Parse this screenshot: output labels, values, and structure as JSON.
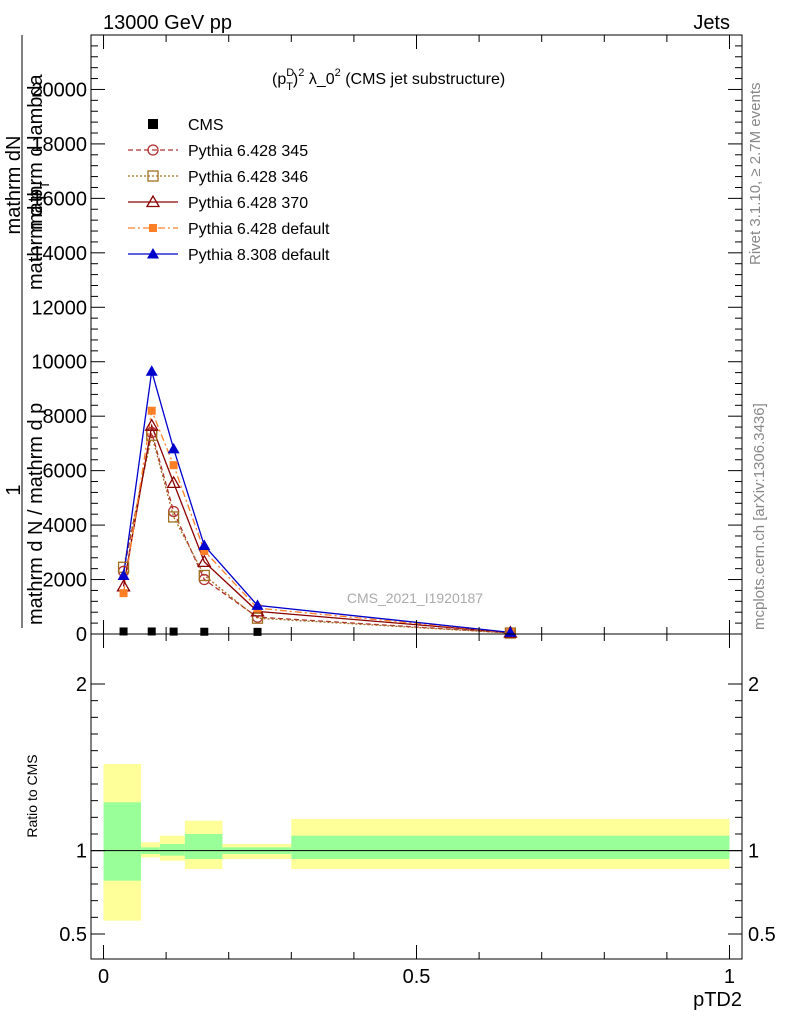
{
  "header": {
    "left": "13000 GeV pp",
    "right": "Jets"
  },
  "side_labels": {
    "rivet": "Rivet 3.1.10, ≥ 2.7M events",
    "mcplots": "mcplots.cern.ch [arXiv:1306.3436]"
  },
  "chart_data": {
    "type": "line",
    "title": "(p_T^D)^2 λ_0^2 (CMS jet substructure)",
    "title_parts": {
      "p": "(p",
      "sup_d": "D",
      "sub_t": "T",
      "close_sq": ")",
      "sq": "2",
      "lambda": " λ_0",
      "rest": " (CMS jet substructure)"
    },
    "watermark": "CMS_2021_I1920187",
    "xlabel": "pTD2",
    "ylabel_parts": {
      "one": "1",
      "num": "mathrm dN",
      "den1": "mathrm d N / mathrm d p",
      "den2": "mathrm d p",
      "den2_sub": "T",
      "den3": "mathrm d lambda"
    },
    "ratio_ylabel": "Ratio to CMS",
    "xlim": [
      -0.02,
      1.02
    ],
    "ylim": [
      0,
      22000
    ],
    "ratio_ylim": [
      0.35,
      2.3
    ],
    "y_ticks": [
      {
        "value": 0,
        "label": "0"
      },
      {
        "value": 2000,
        "label": "2000"
      },
      {
        "value": 4000,
        "label": "4000"
      },
      {
        "value": 6000,
        "label": "6000"
      },
      {
        "value": 8000,
        "label": "8000"
      },
      {
        "value": 10000,
        "label": "10000"
      },
      {
        "value": 12000,
        "label": "12000"
      },
      {
        "value": 14000,
        "label": "14000"
      },
      {
        "value": 16000,
        "label": "16000"
      },
      {
        "value": 18000,
        "label": "18000"
      },
      {
        "value": 20000,
        "label": "20000"
      }
    ],
    "x_ticks": [
      {
        "value": 0,
        "label": "0"
      },
      {
        "value": 0.5,
        "label": "0.5"
      },
      {
        "value": 1,
        "label": "1"
      }
    ],
    "ratio_ticks": [
      {
        "value": 0.5,
        "label": "0.5"
      },
      {
        "value": 1,
        "label": "1"
      },
      {
        "value": 2,
        "label": "2"
      }
    ],
    "x": [
      0.032,
      0.077,
      0.112,
      0.161,
      0.246,
      0.65
    ],
    "series": [
      {
        "name": "CMS",
        "color": "#000000",
        "marker": "square",
        "dash": "",
        "values": [
          20,
          20,
          15,
          10,
          5,
          1
        ]
      },
      {
        "name": "Pythia 6.428 345",
        "color": "#b03030",
        "marker": "circle-open",
        "dash": "5,3",
        "values": [
          2300,
          7400,
          4500,
          2000,
          620,
          40
        ]
      },
      {
        "name": "Pythia 6.428 346",
        "color": "#a07020",
        "marker": "square-open",
        "dash": "2,2",
        "values": [
          2450,
          7300,
          4300,
          2150,
          580,
          35
        ]
      },
      {
        "name": "Pythia 6.428 370",
        "color": "#8b0000",
        "marker": "triangle-open",
        "dash": "",
        "values": [
          1750,
          7650,
          5550,
          2650,
          830,
          50
        ]
      },
      {
        "name": "Pythia 6.428 default",
        "color": "#ff7f27",
        "marker": "square-filled",
        "dash": "7,3,2,3",
        "values": [
          1500,
          8200,
          6200,
          3050,
          950,
          55
        ]
      },
      {
        "name": "Pythia 8.308 default",
        "color": "#0000cc",
        "marker": "triangle-filled",
        "dash": "",
        "values": [
          2150,
          9650,
          6800,
          3250,
          1050,
          60
        ]
      }
    ],
    "ratio_bands": [
      {
        "x0": 0.0,
        "x1": 0.06,
        "inner": [
          0.82,
          1.29
        ],
        "outer": [
          0.58,
          1.52
        ]
      },
      {
        "x0": 0.06,
        "x1": 0.09,
        "inner": [
          0.98,
          1.02
        ],
        "outer": [
          0.96,
          1.05
        ]
      },
      {
        "x0": 0.09,
        "x1": 0.13,
        "inner": [
          0.97,
          1.04
        ],
        "outer": [
          0.94,
          1.09
        ]
      },
      {
        "x0": 0.13,
        "x1": 0.19,
        "inner": [
          0.95,
          1.1
        ],
        "outer": [
          0.89,
          1.18
        ]
      },
      {
        "x0": 0.19,
        "x1": 0.3,
        "inner": [
          0.98,
          1.02
        ],
        "outer": [
          0.95,
          1.04
        ]
      },
      {
        "x0": 0.3,
        "x1": 1.0,
        "inner": [
          0.95,
          1.09
        ],
        "outer": [
          0.89,
          1.19
        ]
      }
    ],
    "legend_position": "top-left"
  }
}
